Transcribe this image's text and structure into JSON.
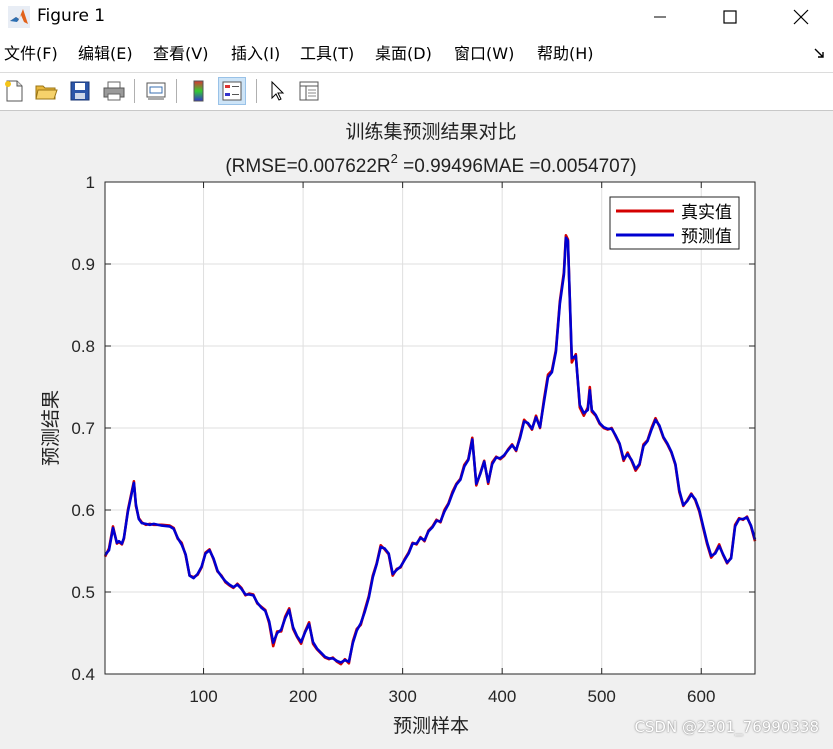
{
  "window": {
    "title": "Figure 1"
  },
  "menu": [
    {
      "label": "文件(F)"
    },
    {
      "label": "编辑(E)"
    },
    {
      "label": "查看(V)"
    },
    {
      "label": "插入(I)"
    },
    {
      "label": "工具(T)"
    },
    {
      "label": "桌面(D)"
    },
    {
      "label": "窗口(W)"
    },
    {
      "label": "帮助(H)"
    }
  ],
  "toolbar": [
    "new-figure-icon",
    "open-file-icon",
    "save-icon",
    "print-icon",
    "link-plot-icon",
    "colorbar-icon",
    "legend-icon",
    "pointer-icon",
    "property-inspector-icon"
  ],
  "watermark": "CSDN @2301_76990338",
  "chart_data": {
    "type": "line",
    "title": "训练集预测结果对比",
    "subtitle": {
      "prefix": "(RMSE=0.007622R",
      "sup": "2",
      "suffix": " =0.99496MAE =0.0054707)"
    },
    "xlabel": "预测样本",
    "ylabel": "预测结果",
    "xlim": [
      1,
      654
    ],
    "ylim": [
      0.4,
      1.0
    ],
    "xticks": [
      100,
      200,
      300,
      400,
      500,
      600
    ],
    "yticks": [
      0.4,
      0.5,
      0.6,
      0.7,
      0.8,
      0.9,
      1
    ],
    "ytick_labels": [
      "0.4",
      "0.5",
      "0.6",
      "0.7",
      "0.8",
      "0.9",
      "1"
    ],
    "grid": true,
    "legend_position": "top-right",
    "colors": {
      "真实值": "#d40000",
      "预测值": "#0000d0"
    },
    "x": [
      1,
      5,
      9,
      13,
      15,
      18,
      20,
      24,
      30,
      32,
      35,
      38,
      42,
      46,
      50,
      58,
      66,
      70,
      74,
      78,
      82,
      86,
      90,
      94,
      98,
      102,
      106,
      110,
      114,
      118,
      122,
      126,
      130,
      134,
      138,
      142,
      146,
      150,
      154,
      158,
      162,
      166,
      170,
      174,
      178,
      182,
      186,
      190,
      194,
      198,
      202,
      206,
      210,
      214,
      218,
      222,
      226,
      230,
      234,
      238,
      242,
      246,
      250,
      254,
      258,
      262,
      266,
      270,
      274,
      278,
      282,
      286,
      290,
      294,
      298,
      302,
      306,
      310,
      314,
      318,
      322,
      326,
      330,
      334,
      338,
      342,
      346,
      350,
      354,
      358,
      362,
      366,
      370,
      374,
      378,
      382,
      386,
      390,
      394,
      398,
      402,
      406,
      410,
      414,
      418,
      422,
      426,
      430,
      434,
      438,
      442,
      446,
      450,
      454,
      458,
      462,
      464,
      466,
      470,
      474,
      478,
      482,
      486,
      488,
      490,
      494,
      498,
      502,
      506,
      510,
      514,
      518,
      522,
      526,
      530,
      534,
      538,
      542,
      546,
      550,
      554,
      558,
      562,
      566,
      570,
      574,
      578,
      582,
      586,
      590,
      594,
      598,
      602,
      606,
      610,
      614,
      618,
      622,
      626,
      630,
      634,
      638,
      642,
      646,
      650,
      654
    ],
    "series": [
      {
        "name": "真实值",
        "values": [
          0.543,
          0.553,
          0.58,
          0.559,
          0.561,
          0.558,
          0.565,
          0.6,
          0.635,
          0.605,
          0.59,
          0.585,
          0.582,
          0.583,
          0.582,
          0.582,
          0.581,
          0.578,
          0.565,
          0.56,
          0.545,
          0.52,
          0.518,
          0.521,
          0.53,
          0.548,
          0.552,
          0.54,
          0.525,
          0.52,
          0.512,
          0.508,
          0.505,
          0.51,
          0.505,
          0.496,
          0.498,
          0.497,
          0.486,
          0.482,
          0.478,
          0.462,
          0.434,
          0.452,
          0.452,
          0.47,
          0.48,
          0.455,
          0.445,
          0.437,
          0.452,
          0.463,
          0.437,
          0.43,
          0.425,
          0.42,
          0.418,
          0.42,
          0.415,
          0.412,
          0.418,
          0.413,
          0.44,
          0.455,
          0.46,
          0.478,
          0.495,
          0.52,
          0.535,
          0.557,
          0.552,
          0.546,
          0.52,
          0.528,
          0.53,
          0.54,
          0.548,
          0.56,
          0.558,
          0.567,
          0.562,
          0.575,
          0.58,
          0.588,
          0.585,
          0.6,
          0.608,
          0.622,
          0.632,
          0.638,
          0.655,
          0.662,
          0.688,
          0.63,
          0.645,
          0.66,
          0.632,
          0.658,
          0.665,
          0.662,
          0.666,
          0.674,
          0.68,
          0.672,
          0.69,
          0.71,
          0.705,
          0.698,
          0.715,
          0.7,
          0.735,
          0.765,
          0.77,
          0.795,
          0.855,
          0.89,
          0.935,
          0.93,
          0.78,
          0.79,
          0.725,
          0.715,
          0.725,
          0.75,
          0.72,
          0.715,
          0.705,
          0.7,
          0.698,
          0.7,
          0.69,
          0.68,
          0.66,
          0.67,
          0.66,
          0.648,
          0.655,
          0.68,
          0.685,
          0.7,
          0.712,
          0.702,
          0.688,
          0.68,
          0.67,
          0.655,
          0.622,
          0.605,
          0.612,
          0.62,
          0.612,
          0.598,
          0.578,
          0.558,
          0.542,
          0.548,
          0.558,
          0.545,
          0.535,
          0.542,
          0.582,
          0.59,
          0.588,
          0.592,
          0.58,
          0.562
        ]
      },
      {
        "name": "预测值",
        "values": [
          0.545,
          0.551,
          0.578,
          0.56,
          0.562,
          0.559,
          0.566,
          0.598,
          0.633,
          0.607,
          0.589,
          0.584,
          0.583,
          0.582,
          0.583,
          0.581,
          0.58,
          0.577,
          0.566,
          0.558,
          0.546,
          0.52,
          0.517,
          0.522,
          0.531,
          0.547,
          0.551,
          0.541,
          0.526,
          0.519,
          0.513,
          0.509,
          0.506,
          0.509,
          0.504,
          0.497,
          0.497,
          0.496,
          0.487,
          0.481,
          0.477,
          0.464,
          0.438,
          0.45,
          0.454,
          0.468,
          0.478,
          0.457,
          0.446,
          0.439,
          0.451,
          0.461,
          0.439,
          0.431,
          0.426,
          0.421,
          0.419,
          0.419,
          0.416,
          0.414,
          0.417,
          0.415,
          0.438,
          0.453,
          0.462,
          0.476,
          0.493,
          0.518,
          0.534,
          0.555,
          0.553,
          0.547,
          0.522,
          0.527,
          0.531,
          0.539,
          0.547,
          0.559,
          0.559,
          0.566,
          0.563,
          0.574,
          0.579,
          0.587,
          0.586,
          0.598,
          0.607,
          0.62,
          0.631,
          0.637,
          0.653,
          0.661,
          0.686,
          0.632,
          0.644,
          0.659,
          0.634,
          0.656,
          0.664,
          0.663,
          0.667,
          0.673,
          0.679,
          0.673,
          0.688,
          0.708,
          0.706,
          0.699,
          0.713,
          0.701,
          0.732,
          0.762,
          0.768,
          0.793,
          0.852,
          0.887,
          0.932,
          0.928,
          0.785,
          0.788,
          0.728,
          0.718,
          0.722,
          0.746,
          0.722,
          0.716,
          0.706,
          0.701,
          0.699,
          0.699,
          0.691,
          0.681,
          0.662,
          0.668,
          0.661,
          0.65,
          0.656,
          0.678,
          0.684,
          0.698,
          0.71,
          0.703,
          0.689,
          0.681,
          0.671,
          0.656,
          0.624,
          0.606,
          0.611,
          0.619,
          0.613,
          0.6,
          0.58,
          0.56,
          0.544,
          0.547,
          0.556,
          0.546,
          0.536,
          0.541,
          0.58,
          0.589,
          0.589,
          0.591,
          0.581,
          0.564
        ]
      }
    ]
  }
}
